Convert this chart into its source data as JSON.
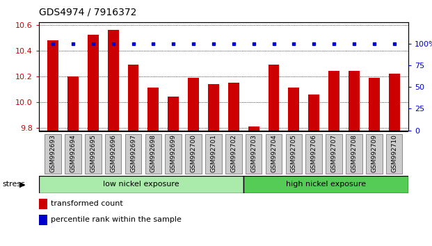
{
  "title": "GDS4974 / 7916372",
  "samples": [
    "GSM992693",
    "GSM992694",
    "GSM992695",
    "GSM992696",
    "GSM992697",
    "GSM992698",
    "GSM992699",
    "GSM992700",
    "GSM992701",
    "GSM992702",
    "GSM992703",
    "GSM992704",
    "GSM992705",
    "GSM992706",
    "GSM992707",
    "GSM992708",
    "GSM992709",
    "GSM992710"
  ],
  "red_values": [
    10.48,
    10.2,
    10.52,
    10.56,
    10.29,
    10.11,
    10.04,
    10.19,
    10.14,
    10.15,
    9.81,
    10.29,
    10.11,
    10.06,
    10.24,
    10.24,
    10.19,
    10.22
  ],
  "blue_values": [
    100,
    100,
    100,
    100,
    100,
    100,
    100,
    100,
    100,
    100,
    100,
    100,
    100,
    100,
    100,
    100,
    100,
    100
  ],
  "ylim_left": [
    9.78,
    10.62
  ],
  "ylim_right": [
    0,
    125
  ],
  "yticks_left": [
    9.8,
    10.0,
    10.2,
    10.4,
    10.6
  ],
  "yticks_right": [
    0,
    25,
    50,
    75,
    100
  ],
  "bar_color": "#cc0000",
  "dot_color": "#0000cc",
  "group1_label": "low nickel exposure",
  "group2_label": "high nickel exposure",
  "group1_color": "#aaeaaa",
  "group2_color": "#55cc55",
  "group1_count": 10,
  "stress_label": "stress",
  "legend_red": "transformed count",
  "legend_blue": "percentile rank within the sample",
  "tick_box_color": "#cccccc"
}
